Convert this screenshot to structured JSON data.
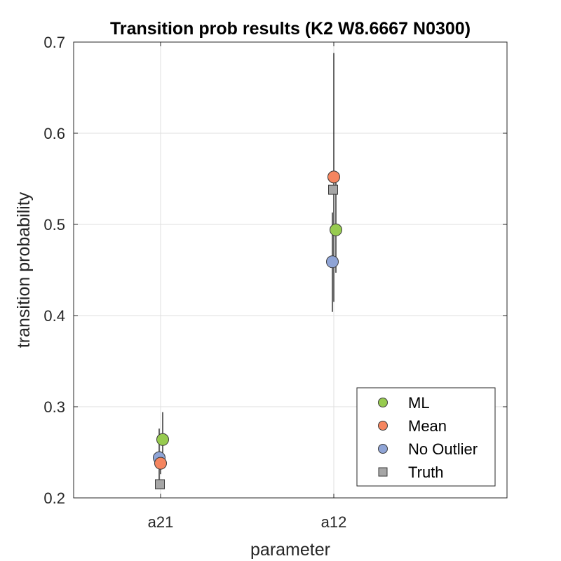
{
  "chart_data": {
    "type": "scatter",
    "title": "Transition prob results (K2 W8.6667 N0300)",
    "xlabel": "parameter",
    "ylabel": "transition probability",
    "categories": [
      "a21",
      "a12"
    ],
    "ylim": [
      0.2,
      0.7
    ],
    "yticks": [
      "0.2",
      "0.3",
      "0.4",
      "0.5",
      "0.6",
      "0.7"
    ],
    "grid": true,
    "legend_position": "bottom-right",
    "series": [
      {
        "name": "ML",
        "color": "#97cb4f",
        "marker": "circle",
        "values": [
          0.264,
          0.494
        ],
        "error_low": [
          0.233,
          0.447
        ],
        "error_high": [
          0.294,
          0.546
        ]
      },
      {
        "name": "Mean",
        "color": "#f5855f",
        "marker": "circle",
        "values": [
          0.238,
          0.552
        ],
        "error_low": [
          0.226,
          0.415
        ],
        "error_high": [
          0.251,
          0.688
        ]
      },
      {
        "name": "No Outlier",
        "color": "#8fa4d6",
        "marker": "circle",
        "values": [
          0.244,
          0.459
        ],
        "error_low": [
          0.213,
          0.404
        ],
        "error_high": [
          0.276,
          0.513
        ]
      },
      {
        "name": "Truth",
        "color": "#a6a6a6",
        "marker": "square",
        "values": [
          0.215,
          0.538
        ]
      }
    ]
  }
}
